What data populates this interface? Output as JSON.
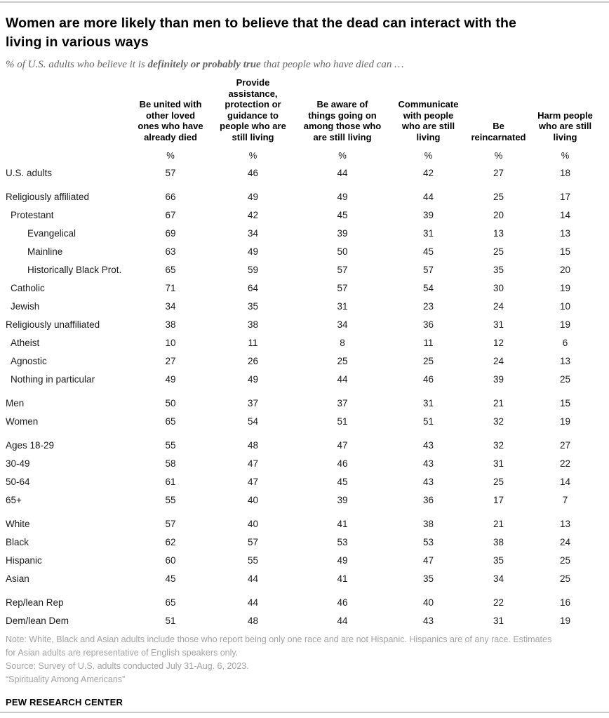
{
  "colors": {
    "title_color": "#000000",
    "subtitle_color": "#666666",
    "table_text_color": "#1a1a1a",
    "note_color": "#a2a2a2",
    "rule_color": "#c9c9c9",
    "brand_color": "#000000"
  },
  "header": {
    "title": "Women are more likely than men to believe that the dead can interact with the\nliving in various ways",
    "subtitle_prefix": "% of U.S. adults who believe it is ",
    "subtitle_bold": "definitely or probably true",
    "subtitle_suffix": " that people who have died can …"
  },
  "chart_data": {
    "type": "table",
    "title": "Women are more likely than men to believe that the dead can interact with the living in various ways",
    "subtitle": "% of U.S. adults who believe it is definitely or probably true that people who have died can …",
    "unit_label": "%",
    "columns": [
      "Be united with\nother loved\nones who have\nalready died",
      "Provide\nassistance,\nprotection or\nguidance to\npeople who are\nstill living",
      "Be aware of\nthings going on\namong those who\nare still living",
      "Communicate\nwith people\nwho are still\nliving",
      "Be\nreincarnated",
      "Harm people\nwho are still\nliving"
    ],
    "rows": [
      {
        "label": "U.S. adults",
        "indent": 0,
        "gap_before": false,
        "values": [
          57,
          46,
          44,
          42,
          27,
          18
        ]
      },
      {
        "label": "Religiously affiliated",
        "indent": 0,
        "gap_before": true,
        "values": [
          66,
          49,
          49,
          44,
          25,
          17
        ]
      },
      {
        "label": "Protestant",
        "indent": 1,
        "gap_before": false,
        "values": [
          67,
          42,
          45,
          39,
          20,
          14
        ]
      },
      {
        "label": "Evangelical",
        "indent": 2,
        "gap_before": false,
        "values": [
          69,
          34,
          39,
          31,
          13,
          13
        ]
      },
      {
        "label": "Mainline",
        "indent": 2,
        "gap_before": false,
        "values": [
          63,
          49,
          50,
          45,
          25,
          15
        ]
      },
      {
        "label": "Historically Black Prot.",
        "indent": 2,
        "gap_before": false,
        "values": [
          65,
          59,
          57,
          57,
          35,
          20
        ]
      },
      {
        "label": "Catholic",
        "indent": 1,
        "gap_before": false,
        "values": [
          71,
          64,
          57,
          54,
          30,
          19
        ]
      },
      {
        "label": "Jewish",
        "indent": 1,
        "gap_before": false,
        "values": [
          34,
          35,
          31,
          23,
          24,
          10
        ]
      },
      {
        "label": "Religiously unaffiliated",
        "indent": 0,
        "gap_before": false,
        "values": [
          38,
          38,
          34,
          36,
          31,
          19
        ]
      },
      {
        "label": "Atheist",
        "indent": 1,
        "gap_before": false,
        "values": [
          10,
          11,
          8,
          11,
          12,
          6
        ]
      },
      {
        "label": "Agnostic",
        "indent": 1,
        "gap_before": false,
        "values": [
          27,
          26,
          25,
          25,
          24,
          13
        ]
      },
      {
        "label": "Nothing in particular",
        "indent": 1,
        "gap_before": false,
        "values": [
          49,
          49,
          44,
          46,
          39,
          25
        ]
      },
      {
        "label": "Men",
        "indent": 0,
        "gap_before": true,
        "values": [
          50,
          37,
          37,
          31,
          21,
          15
        ]
      },
      {
        "label": "Women",
        "indent": 0,
        "gap_before": false,
        "values": [
          65,
          54,
          51,
          51,
          32,
          19
        ]
      },
      {
        "label": "Ages 18-29",
        "indent": 0,
        "gap_before": true,
        "values": [
          55,
          48,
          47,
          43,
          32,
          27
        ]
      },
      {
        "label": "30-49",
        "indent": 0,
        "gap_before": false,
        "values": [
          58,
          47,
          46,
          43,
          31,
          22
        ]
      },
      {
        "label": "50-64",
        "indent": 0,
        "gap_before": false,
        "values": [
          61,
          47,
          45,
          43,
          25,
          14
        ]
      },
      {
        "label": "65+",
        "indent": 0,
        "gap_before": false,
        "values": [
          55,
          40,
          39,
          36,
          17,
          7
        ]
      },
      {
        "label": "White",
        "indent": 0,
        "gap_before": true,
        "values": [
          57,
          40,
          41,
          38,
          21,
          13
        ]
      },
      {
        "label": "Black",
        "indent": 0,
        "gap_before": false,
        "values": [
          62,
          57,
          53,
          53,
          38,
          24
        ]
      },
      {
        "label": "Hispanic",
        "indent": 0,
        "gap_before": false,
        "values": [
          60,
          55,
          49,
          47,
          35,
          25
        ]
      },
      {
        "label": "Asian",
        "indent": 0,
        "gap_before": false,
        "values": [
          45,
          44,
          41,
          35,
          34,
          25
        ]
      },
      {
        "label": "Rep/lean Rep",
        "indent": 0,
        "gap_before": true,
        "values": [
          65,
          44,
          46,
          40,
          22,
          16
        ]
      },
      {
        "label": "Dem/lean Dem",
        "indent": 0,
        "gap_before": false,
        "values": [
          51,
          48,
          44,
          43,
          31,
          19
        ]
      }
    ]
  },
  "footer": {
    "note": "Note: White, Black and Asian adults include those who report being only one race and are not Hispanic. Hispanics are of any race. Estimates\nfor Asian adults are representative of English speakers only.",
    "source": "Source: Survey of U.S. adults conducted July 31-Aug. 6, 2023.",
    "attribution": "“Spirituality Among Americans”",
    "brand": "PEW RESEARCH CENTER"
  }
}
